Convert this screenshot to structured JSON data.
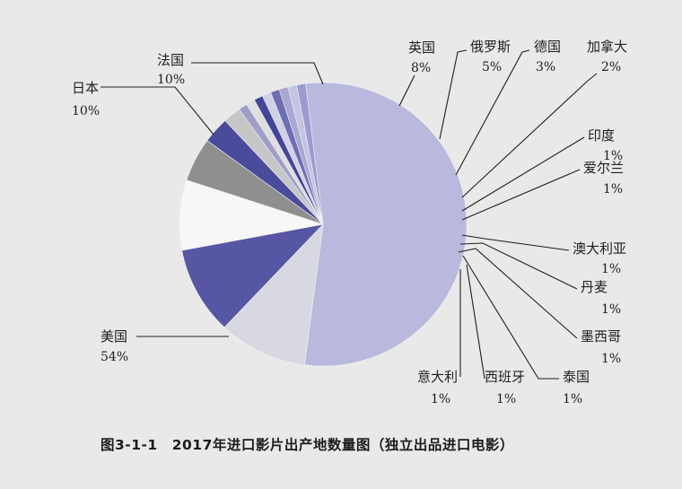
{
  "caption": "图3-1-1　2017年进口影片出产地数量图（独立出品进口电影）",
  "chart_data": {
    "type": "pie",
    "title": "",
    "slices": [
      {
        "label": "美国",
        "pct_label": "54%",
        "value": 54,
        "color": "#b9b9dd"
      },
      {
        "label": "日本",
        "pct_label": "10%",
        "value": 10,
        "color": "#d8d8e2"
      },
      {
        "label": "法国",
        "pct_label": "10%",
        "value": 10,
        "color": "#5656a4"
      },
      {
        "label": "英国",
        "pct_label": "8%",
        "value": 8,
        "color": "#f7f7f7"
      },
      {
        "label": "俄罗斯",
        "pct_label": "5%",
        "value": 5,
        "color": "#8f8f8f"
      },
      {
        "label": "德国",
        "pct_label": "3%",
        "value": 3,
        "color": "#4b4b9c"
      },
      {
        "label": "加拿大",
        "pct_label": "2%",
        "value": 2,
        "color": "#c6c6c6"
      },
      {
        "label": "印度",
        "pct_label": "1%",
        "value": 1,
        "color": "#9e9ec8"
      },
      {
        "label": "爱尔兰",
        "pct_label": "1%",
        "value": 1,
        "color": "#dedede"
      },
      {
        "label": "澳大利亚",
        "pct_label": "1%",
        "value": 1,
        "color": "#44449a"
      },
      {
        "label": "丹麦",
        "pct_label": "1%",
        "value": 1,
        "color": "#d0d0e6"
      },
      {
        "label": "墨西哥",
        "pct_label": "1%",
        "value": 1,
        "color": "#6e6eb4"
      },
      {
        "label": "泰国",
        "pct_label": "1%",
        "value": 1,
        "color": "#a8a8d2"
      },
      {
        "label": "西班牙",
        "pct_label": "1%",
        "value": 1,
        "color": "#c4c4e4"
      },
      {
        "label": "意大利",
        "pct_label": "1%",
        "value": 1,
        "color": "#9a9ad0"
      }
    ]
  }
}
